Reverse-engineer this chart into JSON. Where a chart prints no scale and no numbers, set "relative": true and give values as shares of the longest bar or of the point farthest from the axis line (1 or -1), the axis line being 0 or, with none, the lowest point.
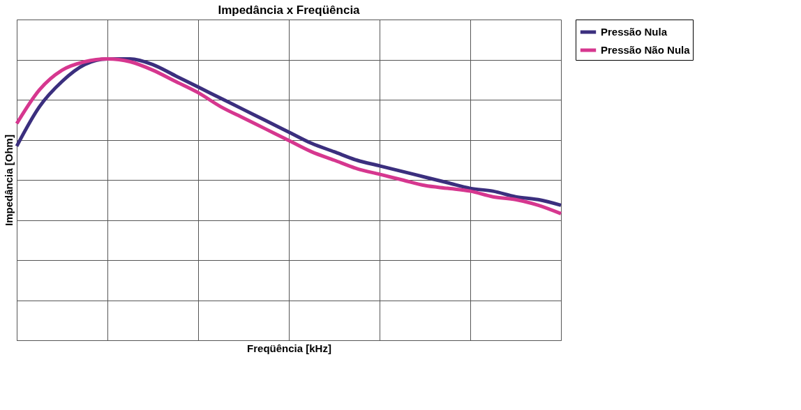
{
  "chart_data": {
    "type": "line",
    "title": "Impedância x Freqüência",
    "xlabel": "Freqüência [kHz]",
    "ylabel": "Impedância [Ohm]",
    "relative": true,
    "grid": true,
    "legend": "right",
    "marker": "none",
    "line_style": "solid",
    "categories": [
      null,
      null,
      null,
      null,
      null,
      null,
      null,
      null,
      null,
      null,
      null,
      null,
      null,
      null,
      null,
      null,
      null,
      null,
      null,
      null,
      null,
      null,
      null,
      null,
      null
    ],
    "series": [
      {
        "name": "Pressão Nula",
        "color": "#3b2f7e",
        "values": [
          0.69,
          0.83,
          0.92,
          0.98,
          1.0,
          1.0,
          0.98,
          0.94,
          0.9,
          0.86,
          0.82,
          0.78,
          0.74,
          0.7,
          0.67,
          0.64,
          0.62,
          0.6,
          0.58,
          0.56,
          0.54,
          0.53,
          0.51,
          0.5,
          0.48
        ]
      },
      {
        "name": "Pressão Não Nula",
        "color": "#d6378f",
        "values": [
          0.77,
          0.89,
          0.96,
          0.99,
          1.0,
          0.99,
          0.96,
          0.92,
          0.88,
          0.83,
          0.79,
          0.75,
          0.71,
          0.67,
          0.64,
          0.61,
          0.59,
          0.57,
          0.55,
          0.54,
          0.53,
          0.51,
          0.5,
          0.48,
          0.45
        ]
      }
    ]
  }
}
